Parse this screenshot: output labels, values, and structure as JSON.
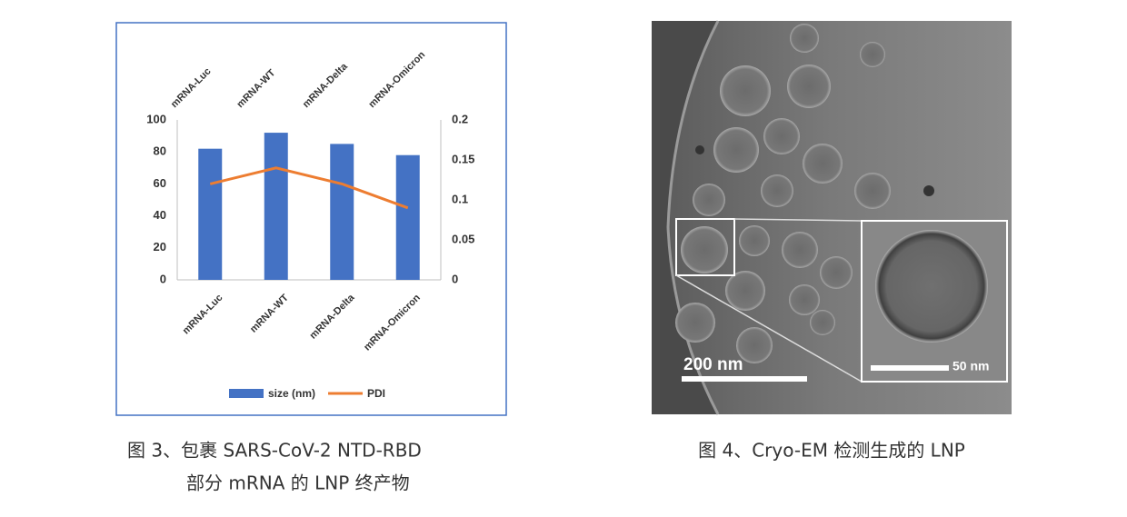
{
  "chart_data": {
    "type": "bar",
    "categories": [
      "mRNA-Luc",
      "mRNA-WT",
      "mRNA-Delta",
      "mRNA-Omicron"
    ],
    "series": [
      {
        "name": "size (nm)",
        "color": "#4472c4",
        "values": [
          82,
          92,
          85,
          78
        ]
      },
      {
        "name": "PDI",
        "color": "#ed7d31",
        "values": [
          0.12,
          0.14,
          0.12,
          0.09
        ],
        "axis": "y2",
        "type": "line"
      }
    ],
    "ylim": [
      0,
      100
    ],
    "yticks": [
      0,
      20,
      40,
      60,
      80,
      100
    ],
    "y2lim": [
      0,
      0.2
    ],
    "y2ticks": [
      0,
      0.05,
      0.1,
      0.15,
      0.2
    ],
    "legend": "bottom"
  },
  "figure_3": {
    "caption": [
      "图 3、包裹 SARS-CoV-2 NTD-RBD",
      "部分 mRNA 的 LNP 终产物"
    ]
  },
  "figure_4": {
    "caption": "图 4、Cryo-EM 检测生成的 LNP",
    "scale_bar": "200 nm",
    "inset_scale_bar": "50 nm"
  }
}
